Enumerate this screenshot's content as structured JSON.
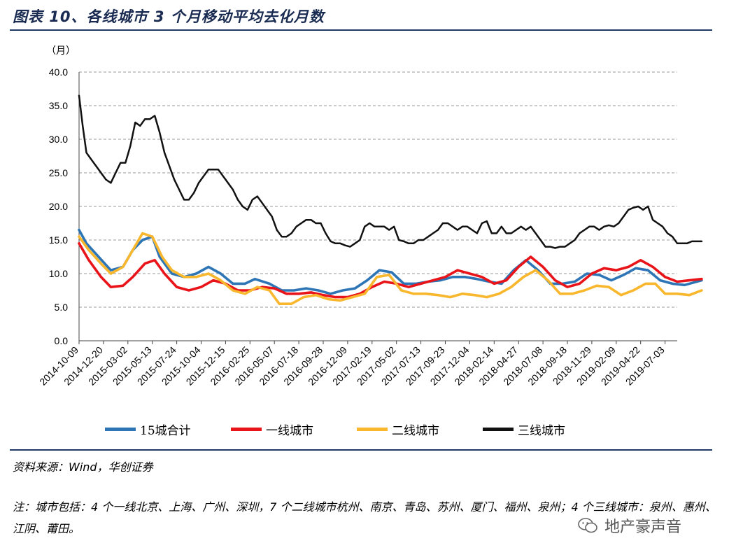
{
  "header": {
    "title": "图表 10、各线城市 3 个月移动平均去化月数"
  },
  "footer": {
    "source": "资料来源：Wind，华创证券",
    "note": "注：城市包括：4 个一线北京、上海、广州、深圳，7 个二线城市杭州、南京、青岛、苏州、厦门、福州、泉州；4 个三线城市：泉州、惠州、江阴、莆田。",
    "watermark": "地产豪声音"
  },
  "chart_data": {
    "type": "line",
    "ylabel": "（月）",
    "ylim": [
      0,
      40
    ],
    "yticks": [
      "0.0",
      "5.0",
      "10.0",
      "15.0",
      "20.0",
      "25.0",
      "30.0",
      "35.0",
      "40.0"
    ],
    "grid": true,
    "legend_position": "bottom",
    "x_labels": [
      "2014-10-09",
      "2014-12-20",
      "2015-03-02",
      "2015-05-13",
      "2015-07-24",
      "2015-10-04",
      "2015-12-15",
      "2016-02-25",
      "2016-05-07",
      "2016-07-18",
      "2016-09-28",
      "2016-12-09",
      "2017-02-19",
      "2017-05-02",
      "2017-07-13",
      "2017-09-23",
      "2017-12-04",
      "2018-02-14",
      "2018-04-27",
      "2018-07-08",
      "2018-09-18",
      "2018-11-29",
      "2019-02-09",
      "2019-04-22",
      "2019-07-03"
    ],
    "x_end": 25.5,
    "series": [
      {
        "name": "15城合计",
        "color": "#2e75b6",
        "points": [
          [
            0,
            16.5
          ],
          [
            0.3,
            14.5
          ],
          [
            0.8,
            12.5
          ],
          [
            1.3,
            10.5
          ],
          [
            1.8,
            11.0
          ],
          [
            2.2,
            13.5
          ],
          [
            2.6,
            15.0
          ],
          [
            3.0,
            15.5
          ],
          [
            3.3,
            12.5
          ],
          [
            3.8,
            10.0
          ],
          [
            4.3,
            9.5
          ],
          [
            4.8,
            10.0
          ],
          [
            5.3,
            11.0
          ],
          [
            5.8,
            10.0
          ],
          [
            6.3,
            8.5
          ],
          [
            6.8,
            8.5
          ],
          [
            7.2,
            9.2
          ],
          [
            7.8,
            8.5
          ],
          [
            8.3,
            7.5
          ],
          [
            8.8,
            7.5
          ],
          [
            9.3,
            7.8
          ],
          [
            9.8,
            7.5
          ],
          [
            10.3,
            7.0
          ],
          [
            10.8,
            7.5
          ],
          [
            11.3,
            7.8
          ],
          [
            11.8,
            9.0
          ],
          [
            12.3,
            10.5
          ],
          [
            12.8,
            10.2
          ],
          [
            13.3,
            8.5
          ],
          [
            13.8,
            8.5
          ],
          [
            14.3,
            8.8
          ],
          [
            14.8,
            9.0
          ],
          [
            15.3,
            9.5
          ],
          [
            15.8,
            9.5
          ],
          [
            16.3,
            9.2
          ],
          [
            16.8,
            8.8
          ],
          [
            17.3,
            8.5
          ],
          [
            17.8,
            10.5
          ],
          [
            18.3,
            12.0
          ],
          [
            18.8,
            10.5
          ],
          [
            19.3,
            8.5
          ],
          [
            19.8,
            8.5
          ],
          [
            20.3,
            8.8
          ],
          [
            20.8,
            10.0
          ],
          [
            21.3,
            9.8
          ],
          [
            21.8,
            9.0
          ],
          [
            22.3,
            9.8
          ],
          [
            22.8,
            10.8
          ],
          [
            23.3,
            10.5
          ],
          [
            23.8,
            9.0
          ],
          [
            24.3,
            8.5
          ],
          [
            24.8,
            8.3
          ],
          [
            25.5,
            9.0
          ]
        ]
      },
      {
        "name": "一线城市",
        "color": "#e8141a",
        "points": [
          [
            0,
            14.5
          ],
          [
            0.4,
            12.0
          ],
          [
            0.9,
            9.5
          ],
          [
            1.3,
            8.0
          ],
          [
            1.8,
            8.2
          ],
          [
            2.2,
            9.5
          ],
          [
            2.7,
            11.5
          ],
          [
            3.1,
            12.0
          ],
          [
            3.5,
            10.0
          ],
          [
            4.0,
            8.0
          ],
          [
            4.5,
            7.5
          ],
          [
            5.0,
            8.0
          ],
          [
            5.5,
            9.0
          ],
          [
            6.0,
            8.5
          ],
          [
            6.5,
            7.5
          ],
          [
            7.0,
            7.5
          ],
          [
            7.5,
            8.0
          ],
          [
            8.0,
            7.8
          ],
          [
            8.5,
            7.0
          ],
          [
            9.0,
            7.0
          ],
          [
            9.5,
            7.2
          ],
          [
            10.0,
            6.8
          ],
          [
            10.5,
            6.5
          ],
          [
            11.0,
            6.5
          ],
          [
            11.5,
            7.0
          ],
          [
            12.0,
            8.0
          ],
          [
            12.5,
            8.8
          ],
          [
            13.0,
            8.5
          ],
          [
            13.5,
            8.0
          ],
          [
            14.0,
            8.5
          ],
          [
            14.5,
            9.0
          ],
          [
            15.0,
            9.5
          ],
          [
            15.5,
            10.5
          ],
          [
            16.0,
            10.0
          ],
          [
            16.5,
            9.5
          ],
          [
            17.0,
            8.5
          ],
          [
            17.5,
            9.0
          ],
          [
            18.0,
            11.0
          ],
          [
            18.5,
            12.5
          ],
          [
            19.0,
            11.0
          ],
          [
            19.5,
            9.0
          ],
          [
            20.0,
            8.0
          ],
          [
            20.5,
            8.5
          ],
          [
            21.0,
            10.0
          ],
          [
            21.5,
            10.8
          ],
          [
            22.0,
            10.5
          ],
          [
            22.5,
            11.0
          ],
          [
            23.0,
            12.0
          ],
          [
            23.5,
            11.0
          ],
          [
            24.0,
            9.5
          ],
          [
            24.5,
            8.8
          ],
          [
            25.0,
            9.0
          ],
          [
            25.5,
            9.2
          ]
        ]
      },
      {
        "name": "二线城市",
        "color": "#f8b72d",
        "points": [
          [
            0,
            15.5
          ],
          [
            0.4,
            13.5
          ],
          [
            0.9,
            11.5
          ],
          [
            1.3,
            10.0
          ],
          [
            1.8,
            11.0
          ],
          [
            2.2,
            13.5
          ],
          [
            2.6,
            16.0
          ],
          [
            3.0,
            15.5
          ],
          [
            3.4,
            12.5
          ],
          [
            3.8,
            10.5
          ],
          [
            4.3,
            9.5
          ],
          [
            4.8,
            9.5
          ],
          [
            5.3,
            10.0
          ],
          [
            5.8,
            9.0
          ],
          [
            6.3,
            7.5
          ],
          [
            6.8,
            7.0
          ],
          [
            7.3,
            8.0
          ],
          [
            7.8,
            7.5
          ],
          [
            8.2,
            5.5
          ],
          [
            8.7,
            5.5
          ],
          [
            9.2,
            6.5
          ],
          [
            9.7,
            6.8
          ],
          [
            10.2,
            6.2
          ],
          [
            10.7,
            6.0
          ],
          [
            11.2,
            6.5
          ],
          [
            11.7,
            7.0
          ],
          [
            12.2,
            9.5
          ],
          [
            12.7,
            9.8
          ],
          [
            13.2,
            7.5
          ],
          [
            13.7,
            7.0
          ],
          [
            14.2,
            7.0
          ],
          [
            14.7,
            6.8
          ],
          [
            15.2,
            6.5
          ],
          [
            15.7,
            7.0
          ],
          [
            16.2,
            6.8
          ],
          [
            16.7,
            6.5
          ],
          [
            17.2,
            7.0
          ],
          [
            17.7,
            8.0
          ],
          [
            18.2,
            9.5
          ],
          [
            18.7,
            10.5
          ],
          [
            19.2,
            9.0
          ],
          [
            19.7,
            7.0
          ],
          [
            20.2,
            7.0
          ],
          [
            20.7,
            7.5
          ],
          [
            21.2,
            8.2
          ],
          [
            21.7,
            8.0
          ],
          [
            22.2,
            6.8
          ],
          [
            22.7,
            7.5
          ],
          [
            23.2,
            8.5
          ],
          [
            23.6,
            8.5
          ],
          [
            24.0,
            7.0
          ],
          [
            24.5,
            7.0
          ],
          [
            25.0,
            6.8
          ],
          [
            25.5,
            7.5
          ]
        ]
      },
      {
        "name": "三线城市",
        "color": "#111111",
        "points": [
          [
            0,
            36.5
          ],
          [
            0.15,
            32.0
          ],
          [
            0.3,
            28.0
          ],
          [
            0.5,
            27.0
          ],
          [
            0.7,
            26.0
          ],
          [
            0.9,
            25.0
          ],
          [
            1.1,
            24.0
          ],
          [
            1.3,
            23.5
          ],
          [
            1.5,
            25.0
          ],
          [
            1.7,
            26.5
          ],
          [
            1.9,
            26.5
          ],
          [
            2.1,
            29.0
          ],
          [
            2.3,
            32.5
          ],
          [
            2.5,
            32.0
          ],
          [
            2.7,
            33.0
          ],
          [
            2.9,
            33.0
          ],
          [
            3.1,
            33.5
          ],
          [
            3.3,
            31.0
          ],
          [
            3.5,
            28.0
          ],
          [
            3.7,
            26.0
          ],
          [
            3.9,
            24.0
          ],
          [
            4.1,
            22.5
          ],
          [
            4.3,
            21.0
          ],
          [
            4.5,
            21.0
          ],
          [
            4.7,
            22.0
          ],
          [
            4.9,
            23.5
          ],
          [
            5.1,
            24.5
          ],
          [
            5.3,
            25.5
          ],
          [
            5.5,
            25.5
          ],
          [
            5.7,
            25.5
          ],
          [
            5.9,
            24.5
          ],
          [
            6.1,
            23.5
          ],
          [
            6.3,
            22.5
          ],
          [
            6.5,
            21.0
          ],
          [
            6.7,
            20.0
          ],
          [
            6.9,
            19.5
          ],
          [
            7.1,
            21.0
          ],
          [
            7.3,
            21.5
          ],
          [
            7.5,
            20.5
          ],
          [
            7.7,
            19.5
          ],
          [
            7.9,
            18.5
          ],
          [
            8.1,
            16.5
          ],
          [
            8.3,
            15.5
          ],
          [
            8.5,
            15.5
          ],
          [
            8.7,
            16.0
          ],
          [
            8.9,
            17.0
          ],
          [
            9.1,
            17.5
          ],
          [
            9.3,
            18.0
          ],
          [
            9.5,
            18.0
          ],
          [
            9.7,
            17.5
          ],
          [
            9.9,
            17.5
          ],
          [
            10.1,
            16.0
          ],
          [
            10.3,
            14.8
          ],
          [
            10.5,
            14.5
          ],
          [
            10.7,
            14.5
          ],
          [
            10.9,
            14.2
          ],
          [
            11.1,
            14.0
          ],
          [
            11.3,
            14.5
          ],
          [
            11.5,
            15.0
          ],
          [
            11.7,
            17.0
          ],
          [
            11.9,
            17.5
          ],
          [
            12.1,
            17.0
          ],
          [
            12.3,
            17.0
          ],
          [
            12.5,
            17.0
          ],
          [
            12.7,
            16.5
          ],
          [
            12.9,
            17.0
          ],
          [
            13.1,
            15.0
          ],
          [
            13.3,
            14.8
          ],
          [
            13.5,
            14.5
          ],
          [
            13.7,
            14.5
          ],
          [
            13.9,
            15.0
          ],
          [
            14.1,
            15.0
          ],
          [
            14.3,
            15.5
          ],
          [
            14.5,
            16.0
          ],
          [
            14.7,
            16.5
          ],
          [
            14.9,
            17.5
          ],
          [
            15.1,
            17.5
          ],
          [
            15.3,
            17.0
          ],
          [
            15.5,
            16.5
          ],
          [
            15.7,
            17.0
          ],
          [
            15.9,
            17.0
          ],
          [
            16.1,
            16.5
          ],
          [
            16.3,
            16.0
          ],
          [
            16.5,
            17.5
          ],
          [
            16.7,
            17.8
          ],
          [
            16.9,
            16.0
          ],
          [
            17.1,
            16.0
          ],
          [
            17.3,
            17.0
          ],
          [
            17.5,
            16.0
          ],
          [
            17.7,
            16.0
          ],
          [
            17.9,
            16.5
          ],
          [
            18.1,
            17.0
          ],
          [
            18.3,
            16.5
          ],
          [
            18.5,
            17.0
          ],
          [
            18.7,
            16.0
          ],
          [
            18.9,
            15.0
          ],
          [
            19.1,
            14.0
          ],
          [
            19.3,
            14.0
          ],
          [
            19.5,
            13.8
          ],
          [
            19.7,
            14.0
          ],
          [
            19.9,
            14.0
          ],
          [
            20.1,
            14.5
          ],
          [
            20.3,
            15.0
          ],
          [
            20.5,
            16.0
          ],
          [
            20.7,
            16.5
          ],
          [
            20.9,
            17.0
          ],
          [
            21.1,
            17.0
          ],
          [
            21.3,
            16.5
          ],
          [
            21.5,
            17.0
          ],
          [
            21.7,
            17.2
          ],
          [
            21.9,
            17.0
          ],
          [
            22.1,
            17.5
          ],
          [
            22.3,
            18.5
          ],
          [
            22.5,
            19.5
          ],
          [
            22.7,
            19.8
          ],
          [
            22.9,
            20.0
          ],
          [
            23.1,
            19.5
          ],
          [
            23.3,
            20.0
          ],
          [
            23.5,
            18.0
          ],
          [
            23.7,
            17.5
          ],
          [
            23.9,
            17.0
          ],
          [
            24.1,
            16.0
          ],
          [
            24.3,
            15.5
          ],
          [
            24.5,
            14.5
          ],
          [
            24.7,
            14.5
          ],
          [
            24.9,
            14.5
          ],
          [
            25.1,
            14.8
          ],
          [
            25.3,
            14.8
          ],
          [
            25.5,
            14.8
          ]
        ]
      }
    ]
  }
}
